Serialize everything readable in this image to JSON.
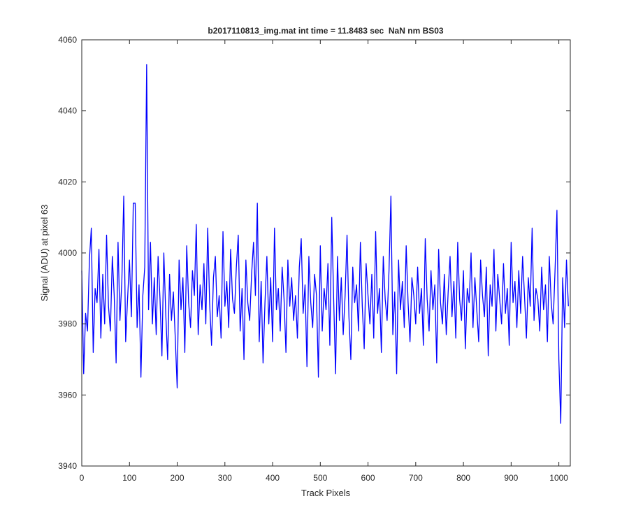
{
  "chart_data": {
    "type": "line",
    "title": "b2017110813_img.mat int time = 11.8483 sec  NaN nm BS03",
    "xlabel": "Track Pixels",
    "ylabel": "Signal (ADU) at pixel 63",
    "xlim": [
      0,
      1024
    ],
    "ylim": [
      3940,
      4060
    ],
    "xticks": [
      0,
      100,
      200,
      300,
      400,
      500,
      600,
      700,
      800,
      900,
      1000
    ],
    "yticks": [
      3940,
      3960,
      3980,
      4000,
      4020,
      4040,
      4060
    ],
    "series": [
      {
        "color": "#0000ff",
        "x": [
          0,
          4,
          8,
          12,
          16,
          20,
          24,
          28,
          32,
          36,
          40,
          44,
          48,
          52,
          56,
          60,
          64,
          68,
          72,
          76,
          80,
          84,
          88,
          92,
          96,
          100,
          104,
          108,
          112,
          116,
          120,
          124,
          128,
          132,
          136,
          140,
          144,
          148,
          152,
          156,
          160,
          164,
          168,
          172,
          176,
          180,
          184,
          188,
          192,
          196,
          200,
          204,
          208,
          212,
          216,
          220,
          224,
          228,
          232,
          236,
          240,
          244,
          248,
          252,
          256,
          260,
          264,
          268,
          272,
          276,
          280,
          284,
          288,
          292,
          296,
          300,
          304,
          308,
          312,
          316,
          320,
          324,
          328,
          332,
          336,
          340,
          344,
          348,
          352,
          356,
          360,
          364,
          368,
          372,
          376,
          380,
          384,
          388,
          392,
          396,
          400,
          404,
          408,
          412,
          416,
          420,
          424,
          428,
          432,
          436,
          440,
          444,
          448,
          452,
          456,
          460,
          464,
          468,
          472,
          476,
          480,
          484,
          488,
          492,
          496,
          500,
          504,
          508,
          512,
          516,
          520,
          524,
          528,
          532,
          536,
          540,
          544,
          548,
          552,
          556,
          560,
          564,
          568,
          572,
          576,
          580,
          584,
          588,
          592,
          596,
          600,
          604,
          608,
          612,
          616,
          620,
          624,
          628,
          632,
          636,
          640,
          644,
          648,
          652,
          656,
          660,
          664,
          668,
          672,
          676,
          680,
          684,
          688,
          692,
          696,
          700,
          704,
          708,
          712,
          716,
          720,
          724,
          728,
          732,
          736,
          740,
          744,
          748,
          752,
          756,
          760,
          764,
          768,
          772,
          776,
          780,
          784,
          788,
          792,
          796,
          800,
          804,
          808,
          812,
          816,
          820,
          824,
          828,
          832,
          836,
          840,
          844,
          848,
          852,
          856,
          860,
          864,
          868,
          872,
          876,
          880,
          884,
          888,
          892,
          896,
          900,
          904,
          908,
          912,
          916,
          920,
          924,
          928,
          932,
          936,
          940,
          944,
          948,
          952,
          956,
          960,
          964,
          968,
          972,
          976,
          980,
          984,
          988,
          992,
          996,
          1000,
          1004,
          1008,
          1012,
          1016,
          1020
        ],
        "values": [
          3995,
          3966,
          3983,
          3978,
          3998,
          4007,
          3972,
          3990,
          3986,
          4001,
          3976,
          3994,
          3980,
          4005,
          3985,
          3978,
          3999,
          3988,
          3969,
          4003,
          3981,
          3992,
          4016,
          3975,
          3987,
          3998,
          3982,
          4014,
          4014,
          3979,
          3991,
          3965,
          3988,
          3996,
          4053,
          3984,
          4003,
          3980,
          3993,
          3977,
          3999,
          3987,
          3971,
          4000,
          3983,
          3970,
          3994,
          3981,
          3989,
          3976,
          3962,
          3998,
          3984,
          3993,
          3972,
          4002,
          3986,
          3979,
          3995,
          3988,
          4008,
          3977,
          3991,
          3984,
          3997,
          3980,
          4007,
          3986,
          3974,
          3993,
          3999,
          3982,
          3988,
          3976,
          4006,
          3985,
          3992,
          3979,
          4001,
          3987,
          3983,
          3996,
          4005,
          3978,
          3990,
          3970,
          3998,
          3986,
          3981,
          3994,
          4003,
          3988,
          4014,
          3975,
          3992,
          3969,
          3986,
          3999,
          3980,
          3993,
          3975,
          4007,
          3984,
          3990,
          3978,
          3996,
          3987,
          3972,
          3998,
          3985,
          3993,
          3981,
          3988,
          3976,
          3996,
          4004,
          3983,
          3991,
          3968,
          3999,
          3986,
          3979,
          3994,
          3988,
          3965,
          4002,
          3978,
          3990,
          3984,
          3997,
          3974,
          4010,
          3987,
          3966,
          3999,
          3981,
          3993,
          3977,
          3988,
          4005,
          3982,
          3970,
          3996,
          3986,
          3991,
          3978,
          4003,
          3985,
          3973,
          3997,
          3988,
          3980,
          3994,
          3976,
          4006,
          3983,
          3990,
          3972,
          3999,
          3987,
          3981,
          3995,
          4016,
          3977,
          3989,
          3966,
          3998,
          3984,
          3992,
          3979,
          4002,
          3986,
          3975,
          3993,
          3988,
          3980,
          3996,
          3983,
          3990,
          3974,
          4004,
          3987,
          3978,
          3995,
          3984,
          3991,
          3969,
          4001,
          3986,
          3980,
          3994,
          3977,
          3989,
          3999,
          3982,
          3992,
          3976,
          4003,
          3987,
          3981,
          3995,
          3973,
          3990,
          3986,
          4000,
          3979,
          3993,
          3984,
          3975,
          3998,
          3988,
          3982,
          3996,
          3971,
          3991,
          3985,
          4001,
          3978,
          3994,
          3987,
          3980,
          3997,
          3983,
          3990,
          3974,
          4003,
          3986,
          3992,
          3979,
          3995,
          3983,
          3999,
          3988,
          3976,
          3993,
          3985,
          4007,
          3981,
          3990,
          3987,
          3978,
          3996,
          3984,
          3991,
          3975,
          3999,
          3986,
          3980,
          3995,
          4012,
          3970,
          3952,
          3993,
          3979,
          3998,
          3985
        ]
      }
    ]
  }
}
